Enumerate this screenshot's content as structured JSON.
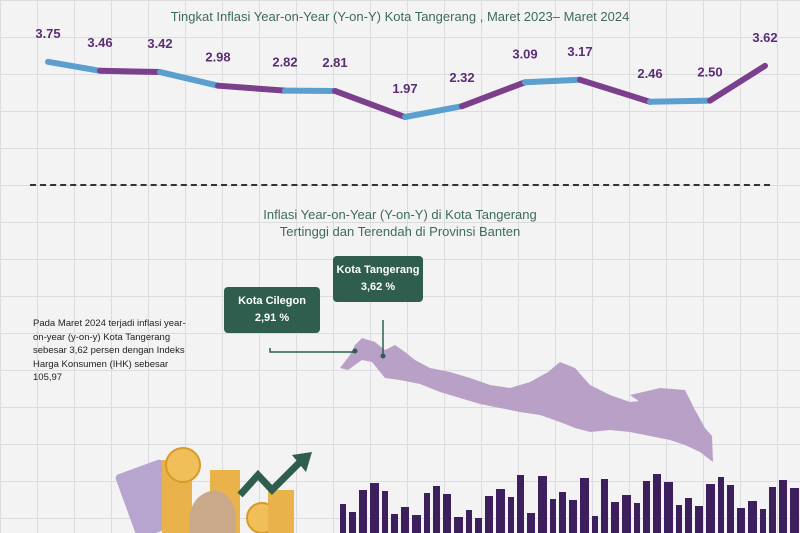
{
  "chart_data": {
    "type": "line",
    "title": "Tingkat Inflasi Year-on-Year (Y-on-Y) Kota Tangerang , Maret 2023– Maret 2024",
    "values": [
      3.75,
      3.46,
      3.42,
      2.98,
      2.82,
      2.81,
      1.97,
      2.32,
      3.09,
      3.17,
      2.46,
      2.5,
      3.62
    ],
    "data_labels": [
      "3.75",
      "3.46",
      "3.42",
      "2.98",
      "2.82",
      "2.81",
      "1.97",
      "2.32",
      "3.09",
      "3.17",
      "2.46",
      "2.50",
      "3.62"
    ],
    "segment_colors": [
      "#5b9fcf",
      "#7b3f8c"
    ],
    "label_color": "#5a2d75",
    "grid": false
  },
  "map_section": {
    "title_line1": "Inflasi Year-on-Year (Y-on-Y) di Kota Tangerang",
    "title_line2": "Tertinggi dan Terendah di Provinsi Banten",
    "callouts": [
      {
        "name": "Kota Cilegon",
        "value": "2,91 %"
      },
      {
        "name": "Kota Tangerang",
        "value": "3,62 %"
      }
    ],
    "note": "Pada Maret 2024 terjadi inflasi year-on-year (y-on-y) Kota Tangerang sebesar 3,62 persen dengan Indeks Harga Konsumen (IHK) sebesar 105,97",
    "map_color": "#b9a0c6",
    "callout_color": "#2f5e4e",
    "skyline_color": "#3e1f5e"
  }
}
